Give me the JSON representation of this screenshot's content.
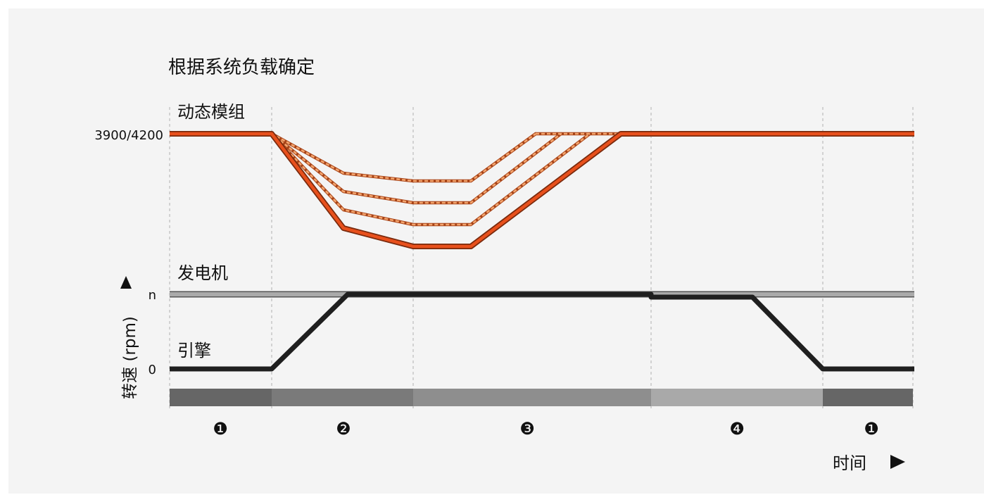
{
  "title": "根据系统负载确定",
  "labels": {
    "dynamic_module": "动态模组",
    "generator": "发电机",
    "engine": "引擎",
    "rpm_axis": "转速 (rpm)",
    "speed_high": "3900/4200",
    "rpm_n": "n",
    "rpm_zero": "0",
    "time_axis": "时间"
  },
  "phases": [
    {
      "label": "❶",
      "color": "#666666"
    },
    {
      "label": "❷",
      "color": "#7a7a7a"
    },
    {
      "label": "❸",
      "color": "#8e8e8e"
    },
    {
      "label": "❹",
      "color": "#a9a9a9"
    },
    {
      "label": "❶",
      "color": "#666666"
    }
  ],
  "colors": {
    "dynamic_line": "#e8501c",
    "dynamic_alt": "#f2a36b",
    "engine_line": "#1f1f1f",
    "generator_line": "#aaaaaa",
    "panel": "#f4f4f4"
  }
}
